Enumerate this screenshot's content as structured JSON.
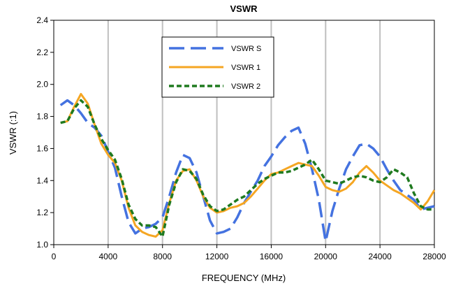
{
  "chart_data": {
    "type": "line",
    "title": "VSWR",
    "xlabel": "FREQUENCY (MHz)",
    "ylabel": "VSWR (:1)",
    "xlim": [
      0,
      28000
    ],
    "ylim": [
      1.0,
      2.4
    ],
    "xticks": [
      0,
      4000,
      8000,
      12000,
      16000,
      20000,
      24000,
      28000
    ],
    "yticks": [
      1.0,
      1.2,
      1.4,
      1.6,
      1.8,
      2.0,
      2.2,
      2.4
    ],
    "xtick_labels": [
      "0",
      "4000",
      "8000",
      "12000",
      "16000",
      "20000",
      "24000",
      "28000"
    ],
    "ytick_labels": [
      "1.0",
      "1.2",
      "1.4",
      "1.6",
      "1.8",
      "2.0",
      "2.2",
      "2.4"
    ],
    "grid": "vertical",
    "legend_position": "top-center",
    "series": [
      {
        "name": "VSWR S",
        "color": "#4472e0",
        "style": "long-dash",
        "points": [
          [
            500,
            1.87
          ],
          [
            1000,
            1.9
          ],
          [
            1500,
            1.87
          ],
          [
            2000,
            1.82
          ],
          [
            2500,
            1.76
          ],
          [
            3000,
            1.73
          ],
          [
            3500,
            1.68
          ],
          [
            4000,
            1.58
          ],
          [
            4500,
            1.48
          ],
          [
            5000,
            1.3
          ],
          [
            5500,
            1.14
          ],
          [
            6000,
            1.07
          ],
          [
            6500,
            1.1
          ],
          [
            7000,
            1.11
          ],
          [
            7500,
            1.13
          ],
          [
            8000,
            1.17
          ],
          [
            8500,
            1.3
          ],
          [
            9000,
            1.45
          ],
          [
            9500,
            1.56
          ],
          [
            10000,
            1.54
          ],
          [
            10500,
            1.45
          ],
          [
            11000,
            1.3
          ],
          [
            11500,
            1.15
          ],
          [
            12000,
            1.07
          ],
          [
            12500,
            1.08
          ],
          [
            13000,
            1.1
          ],
          [
            13500,
            1.17
          ],
          [
            14000,
            1.26
          ],
          [
            14500,
            1.33
          ],
          [
            15000,
            1.4
          ],
          [
            15500,
            1.49
          ],
          [
            16000,
            1.55
          ],
          [
            16500,
            1.62
          ],
          [
            17000,
            1.67
          ],
          [
            17500,
            1.71
          ],
          [
            18000,
            1.73
          ],
          [
            18500,
            1.63
          ],
          [
            19000,
            1.47
          ],
          [
            19500,
            1.28
          ],
          [
            20000,
            1.02
          ],
          [
            20500,
            1.21
          ],
          [
            21000,
            1.35
          ],
          [
            21500,
            1.47
          ],
          [
            22000,
            1.55
          ],
          [
            22500,
            1.62
          ],
          [
            23000,
            1.63
          ],
          [
            23500,
            1.6
          ],
          [
            24000,
            1.55
          ],
          [
            24500,
            1.47
          ],
          [
            25000,
            1.4
          ],
          [
            25500,
            1.34
          ],
          [
            26000,
            1.31
          ],
          [
            26500,
            1.28
          ],
          [
            27000,
            1.22
          ],
          [
            27500,
            1.23
          ],
          [
            28000,
            1.24
          ]
        ]
      },
      {
        "name": "VSWR 1",
        "color": "#f5a623",
        "style": "solid",
        "points": [
          [
            500,
            1.76
          ],
          [
            1000,
            1.77
          ],
          [
            1500,
            1.86
          ],
          [
            2000,
            1.94
          ],
          [
            2500,
            1.88
          ],
          [
            3000,
            1.75
          ],
          [
            3500,
            1.63
          ],
          [
            4000,
            1.56
          ],
          [
            4500,
            1.51
          ],
          [
            5000,
            1.4
          ],
          [
            5500,
            1.23
          ],
          [
            6000,
            1.12
          ],
          [
            6500,
            1.08
          ],
          [
            7000,
            1.06
          ],
          [
            7500,
            1.05
          ],
          [
            8000,
            1.09
          ],
          [
            8500,
            1.26
          ],
          [
            9000,
            1.4
          ],
          [
            9500,
            1.46
          ],
          [
            10000,
            1.47
          ],
          [
            10500,
            1.4
          ],
          [
            11000,
            1.3
          ],
          [
            11500,
            1.23
          ],
          [
            12000,
            1.2
          ],
          [
            12500,
            1.21
          ],
          [
            13000,
            1.23
          ],
          [
            13500,
            1.24
          ],
          [
            14000,
            1.26
          ],
          [
            14500,
            1.3
          ],
          [
            15000,
            1.35
          ],
          [
            15500,
            1.4
          ],
          [
            16000,
            1.44
          ],
          [
            16500,
            1.45
          ],
          [
            17000,
            1.47
          ],
          [
            17500,
            1.49
          ],
          [
            18000,
            1.51
          ],
          [
            18500,
            1.5
          ],
          [
            19000,
            1.49
          ],
          [
            19500,
            1.43
          ],
          [
            20000,
            1.36
          ],
          [
            20500,
            1.34
          ],
          [
            21000,
            1.33
          ],
          [
            21500,
            1.35
          ],
          [
            22000,
            1.39
          ],
          [
            22500,
            1.45
          ],
          [
            23000,
            1.49
          ],
          [
            23500,
            1.45
          ],
          [
            24000,
            1.4
          ],
          [
            24500,
            1.37
          ],
          [
            25000,
            1.34
          ],
          [
            25500,
            1.32
          ],
          [
            26000,
            1.29
          ],
          [
            26500,
            1.26
          ],
          [
            27000,
            1.22
          ],
          [
            27500,
            1.27
          ],
          [
            28000,
            1.34
          ]
        ]
      },
      {
        "name": "VSWR 2",
        "color": "#1f7a1f",
        "style": "dotted",
        "points": [
          [
            500,
            1.76
          ],
          [
            1000,
            1.77
          ],
          [
            1500,
            1.85
          ],
          [
            2000,
            1.9
          ],
          [
            2500,
            1.86
          ],
          [
            3000,
            1.75
          ],
          [
            3500,
            1.66
          ],
          [
            4000,
            1.59
          ],
          [
            4500,
            1.53
          ],
          [
            5000,
            1.41
          ],
          [
            5500,
            1.25
          ],
          [
            6000,
            1.16
          ],
          [
            6500,
            1.12
          ],
          [
            7000,
            1.12
          ],
          [
            7500,
            1.11
          ],
          [
            8000,
            1.05
          ],
          [
            8500,
            1.25
          ],
          [
            9000,
            1.39
          ],
          [
            9500,
            1.47
          ],
          [
            10000,
            1.46
          ],
          [
            10500,
            1.41
          ],
          [
            11000,
            1.31
          ],
          [
            11500,
            1.24
          ],
          [
            12000,
            1.21
          ],
          [
            12500,
            1.22
          ],
          [
            13000,
            1.25
          ],
          [
            13500,
            1.28
          ],
          [
            14000,
            1.3
          ],
          [
            14500,
            1.34
          ],
          [
            15000,
            1.38
          ],
          [
            15500,
            1.41
          ],
          [
            16000,
            1.43
          ],
          [
            16500,
            1.45
          ],
          [
            17000,
            1.45
          ],
          [
            17500,
            1.46
          ],
          [
            18000,
            1.48
          ],
          [
            18500,
            1.5
          ],
          [
            19000,
            1.53
          ],
          [
            19500,
            1.47
          ],
          [
            20000,
            1.4
          ],
          [
            20500,
            1.39
          ],
          [
            21000,
            1.38
          ],
          [
            21500,
            1.4
          ],
          [
            22000,
            1.42
          ],
          [
            22500,
            1.43
          ],
          [
            23000,
            1.42
          ],
          [
            23500,
            1.4
          ],
          [
            24000,
            1.39
          ],
          [
            24500,
            1.42
          ],
          [
            25000,
            1.47
          ],
          [
            25500,
            1.45
          ],
          [
            26000,
            1.42
          ],
          [
            26500,
            1.32
          ],
          [
            27000,
            1.24
          ],
          [
            27500,
            1.22
          ],
          [
            28000,
            1.22
          ]
        ]
      }
    ]
  }
}
